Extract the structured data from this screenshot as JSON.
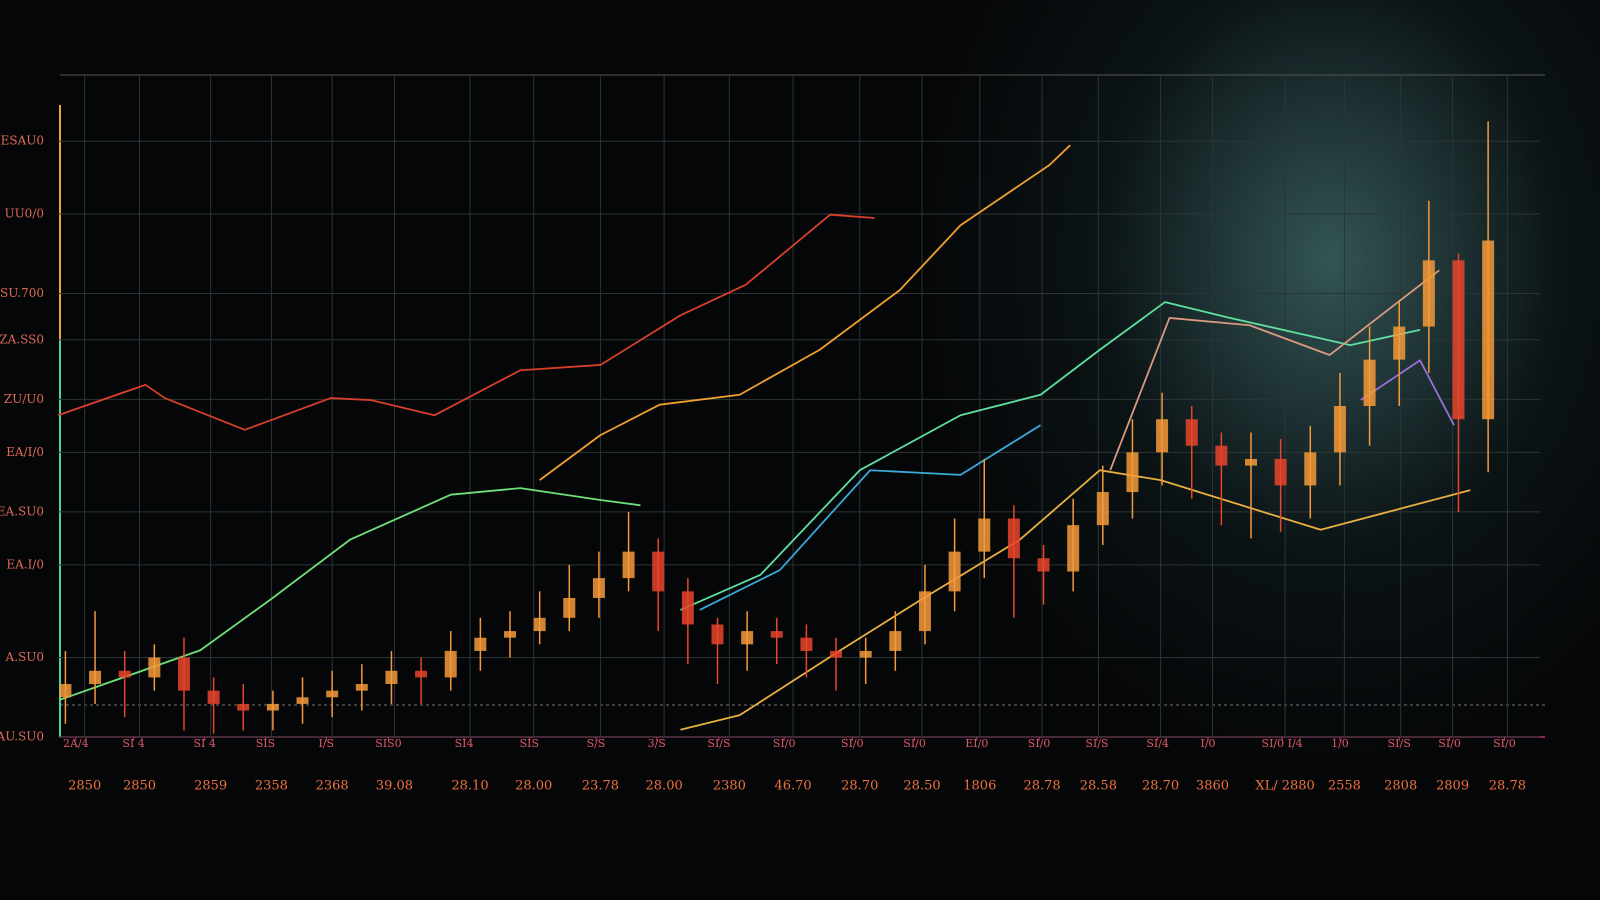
{
  "chart_data": {
    "type": "candlestick",
    "grid": true,
    "xlim": [
      0,
      100
    ],
    "ylim": [
      0,
      100
    ],
    "yticks": [
      {
        "value": 90,
        "label": "ESAU0"
      },
      {
        "value": 79,
        "label": "UU0/0"
      },
      {
        "value": 67,
        "label": "SU.700"
      },
      {
        "value": 60,
        "label": "ZA.SS0"
      },
      {
        "value": 51,
        "label": "ZU/U0"
      },
      {
        "value": 43,
        "label": "EA/I/0"
      },
      {
        "value": 34,
        "label": "EA.SU0"
      },
      {
        "value": 26,
        "label": "EA.I/0"
      },
      {
        "value": 12,
        "label": "A.SU0"
      },
      {
        "value": 0,
        "label": "AU.SU0"
      }
    ],
    "xticks": [
      {
        "value": 1.8,
        "label": "2850"
      },
      {
        "value": 5.5,
        "label": "2850"
      },
      {
        "value": 10.3,
        "label": "2859"
      },
      {
        "value": 14.4,
        "label": "2358"
      },
      {
        "value": 18.5,
        "label": "2368"
      },
      {
        "value": 22.7,
        "label": "39.08"
      },
      {
        "value": 27.8,
        "label": "28.10"
      },
      {
        "value": 32.1,
        "label": "28.00"
      },
      {
        "value": 36.6,
        "label": "23.78"
      },
      {
        "value": 40.9,
        "label": "28.00"
      },
      {
        "value": 45.3,
        "label": "2380"
      },
      {
        "value": 49.6,
        "label": "46.70"
      },
      {
        "value": 54.1,
        "label": "28.70"
      },
      {
        "value": 58.3,
        "label": "28.50"
      },
      {
        "value": 62.2,
        "label": "1806"
      },
      {
        "value": 66.4,
        "label": "28.78"
      },
      {
        "value": 70.2,
        "label": "28.58"
      },
      {
        "value": 74.4,
        "label": "28.70"
      },
      {
        "value": 77.9,
        "label": "3860"
      },
      {
        "value": 82.8,
        "label": "XL/ 2880"
      },
      {
        "value": 86.8,
        "label": "2558"
      },
      {
        "value": 90.6,
        "label": "2808"
      },
      {
        "value": 94.1,
        "label": "2809"
      },
      {
        "value": 97.8,
        "label": "28.78"
      }
    ],
    "minor_xticks": [
      {
        "value": 1.2,
        "label": "2A/4"
      },
      {
        "value": 5.1,
        "label": "SI 4"
      },
      {
        "value": 9.9,
        "label": "SI 4"
      },
      {
        "value": 14.0,
        "label": "SIS"
      },
      {
        "value": 18.1,
        "label": "I/S"
      },
      {
        "value": 22.3,
        "label": "SIS0"
      },
      {
        "value": 27.4,
        "label": "SI4"
      },
      {
        "value": 31.8,
        "label": "SIS"
      },
      {
        "value": 36.3,
        "label": "S/S"
      },
      {
        "value": 40.4,
        "label": "3/S"
      },
      {
        "value": 44.6,
        "label": "SI/S"
      },
      {
        "value": 49.0,
        "label": "SI/0"
      },
      {
        "value": 53.6,
        "label": "SI/0"
      },
      {
        "value": 57.8,
        "label": "SI/0"
      },
      {
        "value": 62.0,
        "label": "EI/0"
      },
      {
        "value": 66.2,
        "label": "SI/0"
      },
      {
        "value": 70.1,
        "label": "SI/S"
      },
      {
        "value": 74.2,
        "label": "SI/4"
      },
      {
        "value": 77.6,
        "label": "I/0"
      },
      {
        "value": 82.6,
        "label": "SI/0 I/4"
      },
      {
        "value": 86.5,
        "label": "1/0"
      },
      {
        "value": 90.5,
        "label": "SI/S"
      },
      {
        "value": 93.9,
        "label": "SI/0"
      },
      {
        "value": 97.6,
        "label": "SI/0"
      }
    ],
    "rising_color": "#f59a3a",
    "falling_color": "#e8452c",
    "candles": {
      "x": [
        0.5,
        2.5,
        4.5,
        6.5,
        8.5,
        10.5,
        12.5,
        14.5,
        16.5,
        18.5,
        20.5,
        22.5,
        24.5,
        26.5,
        28.5,
        30.5,
        32.5,
        34.5,
        36.5,
        38.5,
        40.5,
        42.5,
        44.5,
        46.5,
        48.5,
        50.5,
        52.5,
        54.5,
        56.5,
        58.5,
        60.5,
        62.5,
        64.5,
        66.5,
        68.5,
        70.5,
        72.5,
        74.5,
        76.5,
        78.5,
        80.5,
        82.5,
        84.5,
        86.5,
        88.5,
        90.5,
        92.5,
        94.5,
        96.5
      ],
      "open": [
        6,
        8,
        10,
        9,
        12,
        7,
        5,
        4,
        5,
        6,
        7,
        8,
        10,
        9,
        13,
        15,
        16,
        18,
        21,
        24,
        28,
        22,
        17,
        14,
        16,
        15,
        13,
        12,
        13,
        16,
        22,
        28,
        33,
        27,
        25,
        32,
        37,
        43,
        48,
        44,
        41,
        42,
        38,
        43,
        50,
        57,
        62,
        72,
        48
      ],
      "high": [
        13,
        19,
        13,
        14,
        15,
        9,
        8,
        7,
        9,
        10,
        11,
        13,
        12,
        16,
        18,
        19,
        22,
        26,
        28,
        34,
        30,
        24,
        18,
        19,
        18,
        17,
        15,
        15,
        19,
        26,
        33,
        42,
        35,
        29,
        36,
        41,
        48,
        52,
        50,
        46,
        46,
        45,
        47,
        55,
        62,
        66,
        81,
        73,
        93
      ],
      "low": [
        2,
        5,
        3,
        7,
        1,
        0.5,
        1,
        1,
        2,
        3,
        4,
        5,
        5,
        7,
        10,
        12,
        14,
        16,
        18,
        22,
        16,
        11,
        8,
        10,
        11,
        9,
        7,
        8,
        10,
        14,
        19,
        24,
        18,
        20,
        22,
        29,
        33,
        38,
        36,
        32,
        30,
        31,
        33,
        38,
        44,
        50,
        55,
        34,
        40
      ],
      "close": [
        8,
        10,
        9,
        12,
        7,
        5,
        4,
        5,
        6,
        7,
        8,
        10,
        9,
        13,
        15,
        16,
        18,
        21,
        24,
        28,
        22,
        17,
        14,
        16,
        15,
        13,
        12,
        13,
        16,
        22,
        28,
        33,
        27,
        25,
        32,
        37,
        43,
        48,
        44,
        41,
        42,
        38,
        43,
        50,
        57,
        62,
        72,
        48,
        75
      ]
    },
    "series": [
      {
        "color": "#d8402c",
        "x": [
          0,
          5.9,
          7.2,
          12.6,
          18.4,
          21.1,
          25.4,
          31.2,
          36.6,
          42.0,
          46.4,
          52.1,
          55.1
        ],
        "values": [
          48.6,
          53.2,
          51.2,
          46.4,
          51.2,
          50.9,
          48.6,
          55.4,
          56.2,
          63.7,
          68.3,
          78.9,
          78.4
        ]
      },
      {
        "color": "#f0a030",
        "x": [
          32.5,
          36.6,
          40.6,
          46.0,
          51.4,
          56.8,
          60.9,
          66.9,
          68.3
        ],
        "values": [
          38.8,
          45.6,
          50.2,
          51.7,
          58.5,
          67.5,
          77.3,
          86.4,
          89.4
        ]
      },
      {
        "color": "#6ee07a",
        "x": [
          0.1,
          9.6,
          14.3,
          19.7,
          26.5,
          31.2,
          36.6,
          39.3
        ],
        "values": [
          5.6,
          13.1,
          20.7,
          29.8,
          36.6,
          37.6,
          35.8,
          35.0
        ]
      },
      {
        "color": "#5fe0a0",
        "x": [
          42.0,
          47.4,
          54.1,
          60.9,
          66.3,
          70.3,
          74.7,
          79.1,
          87.2,
          91.9
        ],
        "values": [
          19.2,
          24.5,
          40.3,
          48.6,
          51.7,
          58.5,
          65.7,
          63.3,
          59.2,
          61.5
        ]
      },
      {
        "color": "#3aa8d8",
        "x": [
          43.3,
          48.7,
          54.8,
          60.9,
          66.3
        ],
        "values": [
          19.2,
          25.2,
          40.3,
          39.6,
          47.1
        ]
      },
      {
        "color": "#e8b040",
        "x": [
          42.0,
          46.0,
          52.8,
          58.2,
          64.9,
          70.3,
          74.4,
          85.2,
          95.3
        ],
        "values": [
          1.1,
          3.3,
          13.1,
          20.7,
          29.8,
          40.3,
          38.8,
          31.3,
          37.3
        ]
      },
      {
        "color": "#9a70d8",
        "x": [
          87.9,
          91.9,
          94.2
        ],
        "values": [
          50.9,
          56.9,
          47.1
        ]
      },
      {
        "color": "#d89a80",
        "x": [
          71.0,
          75.0,
          80.4,
          85.8,
          93.2
        ],
        "values": [
          40.3,
          63.3,
          62.2,
          57.7,
          70.5
        ]
      }
    ]
  }
}
